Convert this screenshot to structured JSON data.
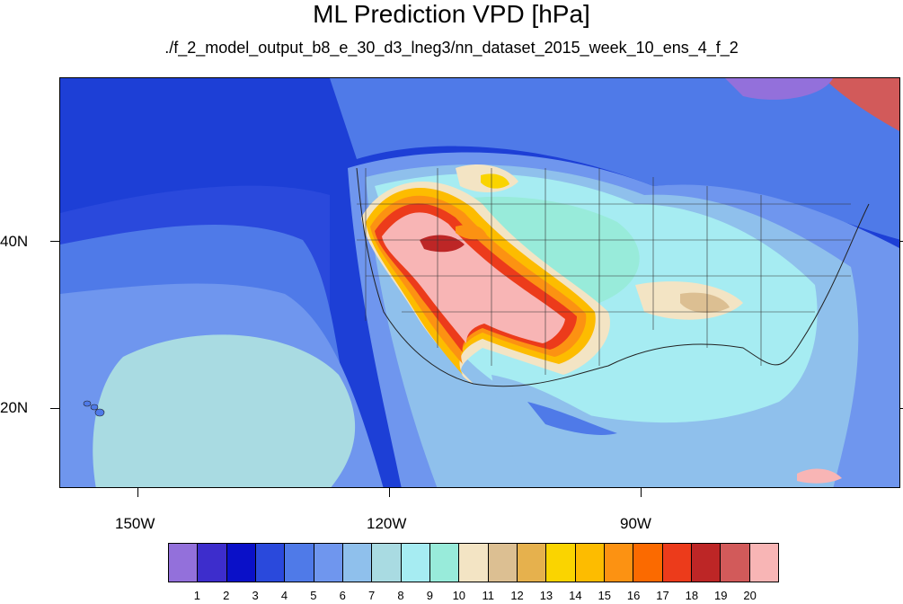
{
  "title": "ML Prediction VPD [hPa]",
  "subtitle": "./f_2_model_output_b8_e_30_d3_lneg3/nn_dataset_2015_week_10_ens_4_f_2",
  "axes": {
    "lat_labels": [
      "40N",
      "20N"
    ],
    "lon_labels": [
      "150W",
      "120W",
      "90W"
    ]
  },
  "colorbar": {
    "labels": [
      "1",
      "2",
      "3",
      "4",
      "5",
      "6",
      "7",
      "8",
      "9",
      "10",
      "11",
      "12",
      "13",
      "14",
      "15",
      "16",
      "17",
      "18",
      "19",
      "20"
    ],
    "colors": [
      "#9370db",
      "#3d2dcc",
      "#0a10c8",
      "#2a49dc",
      "#4f7ae8",
      "#6f96ee",
      "#8fc0ec",
      "#a9dbe2",
      "#a6ecf2",
      "#98ebda",
      "#f3e4c4",
      "#dcbf92",
      "#e6b14d",
      "#fad400",
      "#fdbc00",
      "#fc9212",
      "#fb6a00",
      "#ec3b1b",
      "#bd2626",
      "#d25a5a",
      "#f8b5b5"
    ]
  }
}
